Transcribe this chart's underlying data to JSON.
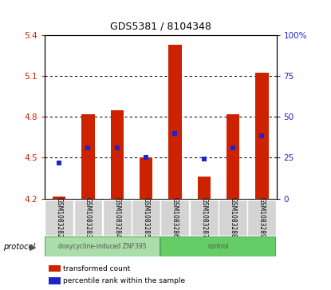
{
  "title": "GDS5381 / 8104348",
  "samples": [
    "GSM1083282",
    "GSM1083283",
    "GSM1083284",
    "GSM1083285",
    "GSM1083286",
    "GSM1083287",
    "GSM1083288",
    "GSM1083289"
  ],
  "bar_bottoms": [
    4.2,
    4.2,
    4.2,
    4.2,
    4.2,
    4.2,
    4.2,
    4.2
  ],
  "bar_tops": [
    4.215,
    4.82,
    4.845,
    4.5,
    5.33,
    4.36,
    4.82,
    5.12
  ],
  "blue_dots": [
    4.46,
    4.57,
    4.57,
    4.5,
    4.68,
    4.49,
    4.57,
    4.66
  ],
  "ylim": [
    4.2,
    5.4
  ],
  "yticks_left": [
    4.2,
    4.5,
    4.8,
    5.1,
    5.4
  ],
  "yticks_right": [
    0,
    25,
    50,
    75,
    100
  ],
  "bar_color": "#cc2200",
  "dot_color": "#2222cc",
  "protocol_groups": [
    {
      "label": "doxycycline-induced ZNF395",
      "start": 0,
      "end": 4,
      "color": "#aaddaa"
    },
    {
      "label": "control",
      "start": 4,
      "end": 8,
      "color": "#66cc66"
    }
  ],
  "legend_items": [
    {
      "color": "#cc2200",
      "label": "transformed count"
    },
    {
      "color": "#2222cc",
      "label": "percentile rank within the sample"
    }
  ]
}
